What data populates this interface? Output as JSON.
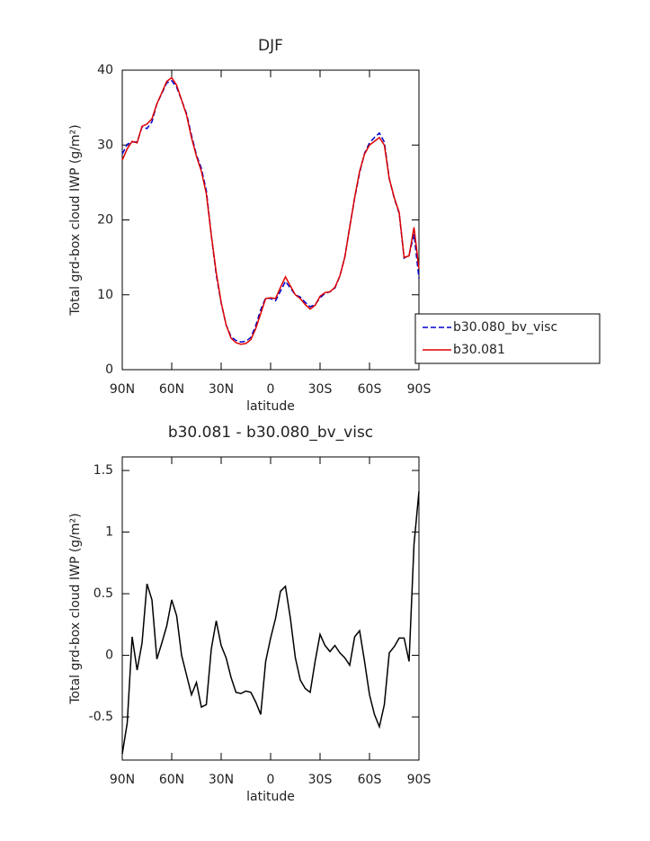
{
  "chart_data": [
    {
      "type": "line",
      "title": "DJF",
      "xlabel": "latitude",
      "ylabel": "Total grd-box cloud IWP (g/m²)",
      "x": [
        90,
        87,
        84,
        81,
        78,
        75,
        72,
        69,
        66,
        63,
        60,
        57,
        54,
        51,
        48,
        45,
        42,
        39,
        36,
        33,
        30,
        27,
        24,
        21,
        18,
        15,
        12,
        9,
        6,
        3,
        0,
        -3,
        -6,
        -9,
        -12,
        -15,
        -18,
        -21,
        -24,
        -27,
        -30,
        -33,
        -36,
        -39,
        -42,
        -45,
        -48,
        -51,
        -54,
        -57,
        -60,
        -63,
        -66,
        -69,
        -72,
        -75,
        -78,
        -81,
        -84,
        -87,
        -90
      ],
      "xlim": [
        90,
        -90
      ],
      "xticks": [
        {
          "value": 90,
          "label": "90N"
        },
        {
          "value": 60,
          "label": "60N"
        },
        {
          "value": 30,
          "label": "30N"
        },
        0,
        {
          "value": -30,
          "label": "30S"
        },
        {
          "value": -60,
          "label": "60S"
        },
        {
          "value": -90,
          "label": "90S"
        }
      ],
      "ylim": [
        0,
        40
      ],
      "yticks": [
        0,
        10,
        20,
        30,
        40
      ],
      "legend": "right",
      "series": [
        {
          "name": "b30.080_bv_visc",
          "color": "#0000cc",
          "style": "dashed",
          "values": [
            28.8,
            30.1,
            30.4,
            30.4,
            32.4,
            32.2,
            33.1,
            35.5,
            36.9,
            38.3,
            38.6,
            37.7,
            36,
            34.2,
            31.3,
            28.7,
            26.9,
            23.9,
            18.0,
            12.7,
            8.9,
            6.0,
            4.4,
            3.9,
            3.7,
            3.8,
            4.3,
            5.9,
            8.0,
            9.6,
            9.5,
            9.2,
            10.5,
            11.8,
            10.9,
            10.0,
            9.7,
            9.0,
            8.4,
            8.7,
            9.6,
            10.2,
            10.4,
            10.9,
            12.5,
            15.0,
            19.1,
            22.9,
            26.3,
            28.9,
            30.3,
            31.0,
            31.6,
            30.4,
            25.5,
            22.9,
            20.9,
            14.9,
            15.3,
            18.1,
            12.2
          ]
        },
        {
          "name": "b30.081",
          "color": "#dd0000",
          "style": "solid",
          "values": [
            28,
            29.5,
            30.5,
            30.3,
            32.5,
            32.8,
            33.5,
            35.5,
            37,
            38.5,
            39,
            38,
            36,
            34,
            31,
            28.5,
            26.5,
            23.5,
            18,
            13,
            9,
            6,
            4.2,
            3.6,
            3.4,
            3.5,
            4.0,
            5.5,
            7.5,
            9.5,
            9.6,
            9.5,
            11,
            12.4,
            11.2,
            10,
            9.5,
            8.7,
            8.1,
            8.6,
            9.8,
            10.3,
            10.4,
            11,
            12.5,
            15,
            19,
            23,
            26.5,
            28.8,
            30,
            30.5,
            31,
            30,
            25.5,
            23,
            21,
            15,
            15.2,
            19,
            13.5
          ]
        }
      ]
    },
    {
      "type": "line",
      "title": "b30.081 - b30.080_bv_visc",
      "xlabel": "latitude",
      "ylabel": "Total grd-box cloud IWP (g/m²)",
      "x": [
        90,
        87,
        84,
        81,
        78,
        75,
        72,
        69,
        66,
        63,
        60,
        57,
        54,
        51,
        48,
        45,
        42,
        39,
        36,
        33,
        30,
        27,
        24,
        21,
        18,
        15,
        12,
        9,
        6,
        3,
        0,
        -3,
        -6,
        -9,
        -12,
        -15,
        -18,
        -21,
        -24,
        -27,
        -30,
        -33,
        -36,
        -39,
        -42,
        -45,
        -48,
        -51,
        -54,
        -57,
        -60,
        -63,
        -66,
        -69,
        -72,
        -75,
        -78,
        -81,
        -84,
        -87,
        -90
      ],
      "xlim": [
        90,
        -90
      ],
      "xticks": [
        {
          "value": 90,
          "label": "90N"
        },
        {
          "value": 60,
          "label": "60N"
        },
        {
          "value": 30,
          "label": "30N"
        },
        0,
        {
          "value": -30,
          "label": "30S"
        },
        {
          "value": -60,
          "label": "60S"
        },
        {
          "value": -90,
          "label": "90S"
        }
      ],
      "ylim": [
        -0.85,
        1.61
      ],
      "yticks": [
        -0.5,
        0.0,
        0.5,
        1.0,
        1.5
      ],
      "color": "#000000",
      "values": [
        -0.8,
        -0.55,
        0.15,
        -0.12,
        0.1,
        0.58,
        0.45,
        -0.03,
        0.1,
        0.24,
        0.45,
        0.32,
        0.0,
        -0.16,
        -0.32,
        -0.22,
        -0.42,
        -0.4,
        0.05,
        0.28,
        0.08,
        -0.02,
        -0.18,
        -0.3,
        -0.31,
        -0.29,
        -0.3,
        -0.38,
        -0.48,
        -0.05,
        0.14,
        0.3,
        0.52,
        0.56,
        0.3,
        -0.02,
        -0.2,
        -0.27,
        -0.3,
        -0.05,
        0.17,
        0.08,
        0.03,
        0.08,
        0.02,
        -0.02,
        -0.08,
        0.15,
        0.2,
        -0.05,
        -0.32,
        -0.48,
        -0.58,
        -0.4,
        0.02,
        0.07,
        0.14,
        0.14,
        -0.05,
        0.9,
        1.33
      ]
    }
  ]
}
